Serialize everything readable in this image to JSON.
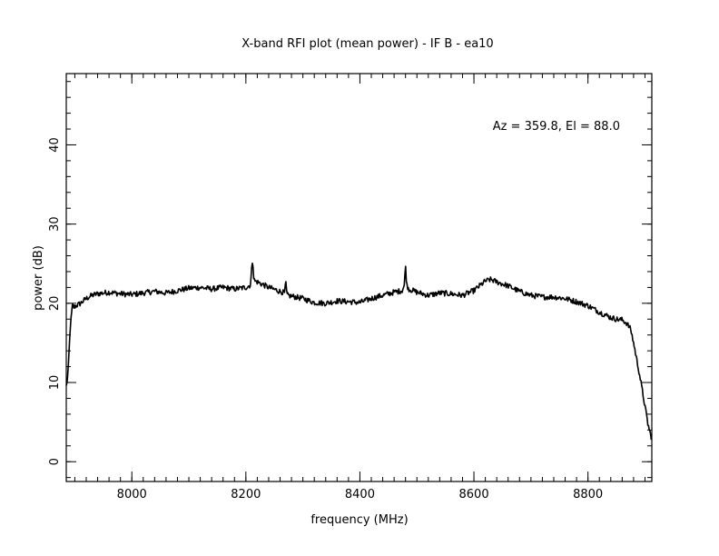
{
  "chart_data": {
    "type": "line",
    "title": "X-band RFI plot (mean power) - IF B - ea10",
    "xlabel": "frequency (MHz)",
    "ylabel": "power (dB)",
    "annotation": "Az = 359.8, El = 88.0",
    "xlim": [
      7885,
      8912
    ],
    "ylim": [
      -2.5,
      49
    ],
    "x_ticks": [
      8000,
      8200,
      8400,
      8600,
      8800
    ],
    "y_ticks": [
      0,
      10,
      20,
      30,
      40
    ],
    "x_minor_step": 20,
    "y_minor_step": 2,
    "grid": false,
    "line_color": "#000000",
    "series": [
      {
        "x": [
          7885,
          7888,
          7892,
          7896,
          7898,
          7900,
          7910,
          7920,
          7930,
          7940,
          7960,
          7980,
          8000,
          8020,
          8040,
          8060,
          8080,
          8100,
          8120,
          8140,
          8160,
          8180,
          8200,
          8208,
          8212,
          8214,
          8216,
          8220,
          8240,
          8260,
          8268,
          8270,
          8272,
          8280,
          8300,
          8320,
          8340,
          8360,
          8380,
          8400,
          8420,
          8440,
          8460,
          8474,
          8478,
          8480,
          8482,
          8486,
          8500,
          8520,
          8540,
          8560,
          8580,
          8600,
          8620,
          8630,
          8640,
          8660,
          8680,
          8700,
          8720,
          8740,
          8760,
          8780,
          8800,
          8820,
          8840,
          8850,
          8860,
          8868,
          8875,
          8880,
          8890,
          8900,
          8905,
          8910,
          8912
        ],
        "values": [
          9.5,
          11,
          17,
          19.8,
          19.5,
          19.6,
          20,
          20.6,
          21,
          21.2,
          21.4,
          21.2,
          21.1,
          21.3,
          21.5,
          21.3,
          21.6,
          21.9,
          22.0,
          21.8,
          22.0,
          21.8,
          22.0,
          22.3,
          25.8,
          23.0,
          22.8,
          22.7,
          22.0,
          21.5,
          21.3,
          22.7,
          21.0,
          20.9,
          20.6,
          20.1,
          20.0,
          20.3,
          20.2,
          20.1,
          20.6,
          21.0,
          21.4,
          21.6,
          22.3,
          24.9,
          22.3,
          21.8,
          21.4,
          21.0,
          21.3,
          21.2,
          21.0,
          21.6,
          22.8,
          23.0,
          22.7,
          22.2,
          21.5,
          21.0,
          20.8,
          20.8,
          20.6,
          20.2,
          19.7,
          18.9,
          18.2,
          18.0,
          17.9,
          17.5,
          16.7,
          15.0,
          11.2,
          7.0,
          4.8,
          3.3,
          2.9
        ]
      }
    ]
  }
}
